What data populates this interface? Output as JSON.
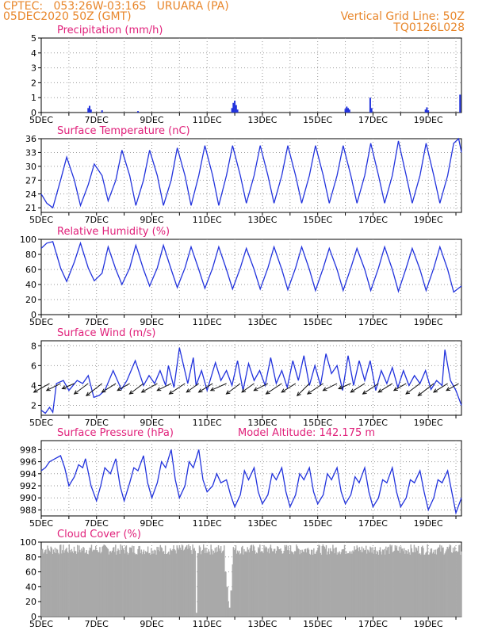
{
  "header": {
    "line1": "CPTEC:   053:26W-03:16S   URUARA (PA)",
    "line2": "05DEC2020 50Z (GMT)",
    "right1": "Vertical Grid Line: 50Z",
    "right2": "TQ0126L028"
  },
  "colors": {
    "header": "#e8862a",
    "title": "#e0207a",
    "line": "#2233dd",
    "cloud": "#a9a9a9",
    "arrow": "#111111"
  },
  "x_ticks": [
    "5DEC",
    "7DEC",
    "9DEC",
    "11DEC",
    "13DEC",
    "15DEC",
    "17DEC",
    "19DEC"
  ],
  "x_tick_positions_day": [
    5,
    7,
    9,
    11,
    13,
    15,
    17,
    19
  ],
  "chart_data": [
    {
      "type": "bar",
      "title": "Precipitation (mm/h)",
      "ylim": [
        0,
        5
      ],
      "yticks": [
        "0",
        "1",
        "2",
        "3",
        "4",
        "5"
      ],
      "xlim_day": [
        5,
        20.2
      ],
      "series": [
        {
          "x": [
            6.7,
            6.75,
            6.8,
            7.2,
            8.5,
            11.9,
            11.95,
            12.0,
            12.05,
            12.1,
            16.0,
            16.05,
            16.1,
            16.15,
            16.9,
            16.95,
            18.9,
            18.95,
            19.0,
            20.15
          ],
          "values": [
            0.3,
            0.45,
            0.2,
            0.15,
            0.1,
            0.3,
            0.65,
            0.8,
            0.5,
            0.2,
            0.25,
            0.4,
            0.3,
            0.2,
            1.0,
            0.3,
            0.2,
            0.35,
            0.15,
            1.2
          ]
        }
      ]
    },
    {
      "type": "line",
      "title": "Surface Temperature (nC)",
      "ylim": [
        20,
        36
      ],
      "yticks": [
        "21",
        "24",
        "27",
        "30",
        "33",
        "36"
      ],
      "xlim_day": [
        5,
        20.2
      ],
      "series": [
        {
          "x": [
            5.0,
            5.2,
            5.42,
            5.7,
            5.92,
            6.2,
            6.42,
            6.7,
            6.92,
            7.2,
            7.42,
            7.7,
            7.92,
            8.2,
            8.42,
            8.7,
            8.92,
            9.2,
            9.42,
            9.7,
            9.92,
            10.2,
            10.42,
            10.7,
            10.92,
            11.2,
            11.42,
            11.7,
            11.92,
            12.2,
            12.42,
            12.7,
            12.92,
            13.2,
            13.42,
            13.7,
            13.92,
            14.2,
            14.42,
            14.7,
            14.92,
            15.2,
            15.42,
            15.7,
            15.92,
            16.2,
            16.42,
            16.7,
            16.92,
            17.2,
            17.42,
            17.7,
            17.92,
            18.2,
            18.42,
            18.7,
            18.92,
            19.2,
            19.42,
            19.7,
            19.92,
            20.1,
            20.2
          ],
          "values": [
            24,
            22,
            21,
            27,
            32,
            27,
            21.5,
            26,
            30.5,
            28,
            22.5,
            27,
            33.5,
            28,
            21.5,
            27,
            33.5,
            28,
            21.5,
            27,
            34,
            28,
            21.5,
            28,
            34.5,
            28,
            21.5,
            28,
            34.5,
            28,
            22,
            28,
            34.5,
            28,
            22,
            28,
            34.5,
            28,
            22,
            28,
            34.5,
            28,
            22,
            28,
            34.5,
            28,
            22,
            28,
            35,
            28,
            22,
            28,
            35.5,
            28,
            22,
            28,
            35,
            28,
            22,
            28,
            35,
            36,
            33
          ]
        }
      ]
    },
    {
      "type": "line",
      "title": "Relative Humidity (%)",
      "ylim": [
        0,
        100
      ],
      "yticks": [
        "0",
        "20",
        "40",
        "60",
        "80",
        "100"
      ],
      "xlim_day": [
        5,
        20.2
      ],
      "series": [
        {
          "x": [
            5.0,
            5.2,
            5.42,
            5.7,
            5.92,
            6.2,
            6.42,
            6.7,
            6.92,
            7.2,
            7.42,
            7.7,
            7.92,
            8.2,
            8.42,
            8.7,
            8.92,
            9.2,
            9.42,
            9.7,
            9.92,
            10.2,
            10.42,
            10.7,
            10.92,
            11.2,
            11.42,
            11.7,
            11.92,
            12.2,
            12.42,
            12.7,
            12.92,
            13.2,
            13.42,
            13.7,
            13.92,
            14.2,
            14.42,
            14.7,
            14.92,
            15.2,
            15.42,
            15.7,
            15.92,
            16.2,
            16.42,
            16.7,
            16.92,
            17.2,
            17.42,
            17.7,
            17.92,
            18.2,
            18.42,
            18.7,
            18.92,
            19.2,
            19.42,
            19.7,
            19.92,
            20.2
          ],
          "values": [
            88,
            95,
            97,
            62,
            44,
            70,
            95,
            62,
            45,
            55,
            90,
            60,
            40,
            62,
            92,
            60,
            38,
            62,
            92,
            60,
            36,
            62,
            90,
            60,
            35,
            62,
            90,
            60,
            34,
            62,
            88,
            60,
            34,
            62,
            90,
            60,
            33,
            62,
            90,
            60,
            32,
            62,
            88,
            60,
            32,
            62,
            88,
            60,
            32,
            62,
            90,
            60,
            31,
            62,
            88,
            60,
            32,
            62,
            90,
            60,
            30,
            38
          ]
        }
      ]
    },
    {
      "type": "line",
      "title": "Surface Wind (m/s)",
      "ylim": [
        1,
        8.5
      ],
      "yticks": [
        "2",
        "4",
        "6",
        "8"
      ],
      "xlim_day": [
        5,
        20.2
      ],
      "series": [
        {
          "x": [
            5.0,
            5.15,
            5.3,
            5.42,
            5.55,
            5.8,
            6.0,
            6.3,
            6.5,
            6.7,
            6.9,
            7.1,
            7.3,
            7.6,
            7.9,
            8.1,
            8.4,
            8.7,
            8.9,
            9.1,
            9.3,
            9.5,
            9.6,
            9.8,
            10.0,
            10.3,
            10.5,
            10.6,
            10.8,
            11.0,
            11.3,
            11.5,
            11.7,
            11.9,
            12.1,
            12.3,
            12.5,
            12.7,
            12.9,
            13.1,
            13.3,
            13.5,
            13.7,
            13.9,
            14.1,
            14.3,
            14.5,
            14.7,
            14.9,
            15.1,
            15.3,
            15.5,
            15.7,
            15.9,
            16.1,
            16.3,
            16.5,
            16.7,
            16.9,
            17.1,
            17.3,
            17.5,
            17.7,
            17.9,
            18.1,
            18.3,
            18.5,
            18.7,
            18.9,
            19.1,
            19.3,
            19.5,
            19.6,
            19.8,
            20.0,
            20.2
          ],
          "values": [
            1.5,
            1.2,
            1.8,
            1.3,
            4.2,
            4.5,
            3.5,
            4.5,
            4.2,
            5.0,
            2.8,
            3.0,
            3.5,
            5.5,
            3.6,
            4.5,
            6.5,
            4.0,
            5.0,
            4.2,
            5.5,
            4.0,
            6.0,
            3.8,
            7.8,
            4.2,
            6.8,
            4.0,
            5.5,
            3.5,
            6.3,
            4.5,
            5.5,
            4.0,
            6.5,
            3.5,
            6.2,
            4.5,
            5.5,
            4.0,
            6.8,
            4.2,
            5.5,
            3.8,
            6.5,
            4.5,
            7.0,
            4.0,
            6.0,
            4.0,
            7.2,
            5.2,
            6.0,
            3.5,
            7.0,
            4.0,
            6.5,
            4.5,
            6.5,
            3.5,
            5.5,
            4.2,
            5.8,
            3.8,
            5.5,
            4.0,
            5.0,
            4.2,
            5.5,
            3.6,
            4.5,
            4.0,
            7.6,
            4.5,
            3.5,
            2.0
          ]
        }
      ],
      "vectors": {
        "x": [
          5.3,
          5.7,
          6.2,
          6.7,
          7.2,
          7.7,
          8.2,
          8.7,
          9.2,
          9.7,
          10.2,
          10.7,
          11.2,
          11.7,
          12.2,
          12.7,
          13.2,
          13.7,
          14.2,
          14.7,
          15.2,
          15.7,
          16.2,
          16.7,
          17.2,
          17.7,
          18.2,
          18.7,
          19.2,
          19.7,
          20.1
        ],
        "u": [
          -0.9,
          -0.8,
          -0.7,
          -0.8,
          -0.9,
          -0.8,
          -0.7,
          -0.8,
          -0.9,
          -0.8,
          -0.9,
          -0.7,
          -0.8,
          -0.9,
          -0.8,
          -0.7,
          -0.8,
          -0.9,
          -0.8,
          -0.7,
          -0.9,
          -0.8,
          -0.7,
          -0.8,
          -0.9,
          -0.8,
          -0.7,
          -0.8,
          -0.9,
          -0.8,
          -0.7
        ],
        "v": [
          -0.5,
          -0.4,
          -0.3,
          -0.6,
          -0.7,
          -0.5,
          -0.4,
          -0.6,
          -0.5,
          -0.4,
          -0.6,
          -0.5,
          -0.5,
          -0.4,
          -0.6,
          -0.5,
          -0.4,
          -0.6,
          -0.5,
          -0.7,
          -0.6,
          -0.4,
          -0.3,
          -0.5,
          -0.6,
          -0.5,
          -0.4,
          -0.6,
          -0.7,
          -0.5,
          -0.4
        ]
      }
    },
    {
      "type": "line",
      "title": "Surface Pressure (hPa)",
      "annotation": "Model Altitude: 142.175 m",
      "ylim": [
        987,
        999.5
      ],
      "yticks": [
        "988",
        "990",
        "992",
        "994",
        "996",
        "998"
      ],
      "xlim_day": [
        5,
        20.2
      ],
      "series": [
        {
          "x": [
            5.0,
            5.15,
            5.3,
            5.5,
            5.7,
            5.85,
            6.0,
            6.2,
            6.35,
            6.5,
            6.6,
            6.8,
            7.0,
            7.15,
            7.3,
            7.5,
            7.7,
            7.85,
            8.0,
            8.2,
            8.35,
            8.5,
            8.7,
            8.85,
            9.0,
            9.2,
            9.35,
            9.5,
            9.7,
            9.85,
            10.0,
            10.2,
            10.35,
            10.5,
            10.7,
            10.85,
            11.0,
            11.2,
            11.35,
            11.5,
            11.7,
            11.85,
            12.0,
            12.2,
            12.35,
            12.5,
            12.7,
            12.85,
            13.0,
            13.2,
            13.35,
            13.5,
            13.7,
            13.85,
            14.0,
            14.2,
            14.35,
            14.5,
            14.7,
            14.85,
            15.0,
            15.2,
            15.35,
            15.5,
            15.7,
            15.85,
            16.0,
            16.2,
            16.35,
            16.5,
            16.7,
            16.85,
            17.0,
            17.2,
            17.35,
            17.5,
            17.7,
            17.85,
            18.0,
            18.2,
            18.35,
            18.5,
            18.7,
            18.85,
            19.0,
            19.2,
            19.35,
            19.5,
            19.7,
            19.85,
            20.0,
            20.2
          ],
          "values": [
            994.5,
            995,
            996,
            996.5,
            997,
            995,
            992,
            993.5,
            995.5,
            995,
            996.5,
            992,
            989.5,
            992,
            995,
            994,
            996.5,
            992,
            989.5,
            992.5,
            995,
            994.5,
            997,
            992.5,
            990,
            992.5,
            996,
            995,
            998,
            993,
            990,
            992,
            996,
            995,
            998,
            993,
            991,
            992,
            994,
            992.5,
            993,
            990.5,
            988.5,
            990.5,
            994.5,
            993,
            995,
            991,
            989,
            990.5,
            994,
            993,
            995,
            991,
            988.5,
            990.5,
            994,
            993,
            995,
            991,
            989,
            990.5,
            994,
            993,
            995,
            991,
            989,
            990.5,
            993.5,
            992.5,
            995,
            991,
            988.5,
            990,
            993,
            992.5,
            995,
            991,
            988.5,
            990,
            993,
            992.5,
            994.5,
            991,
            988,
            990,
            993,
            992.5,
            994.5,
            991,
            987.5,
            990
          ]
        }
      ]
    },
    {
      "type": "bar",
      "title": "Cloud Cover (%)",
      "ylim": [
        0,
        100
      ],
      "yticks": [
        "0",
        "20",
        "40",
        "60",
        "80",
        "100"
      ],
      "xlim_day": [
        5,
        20.2
      ],
      "series": [
        {
          "x": [
            10.6,
            10.65,
            11.65,
            11.7,
            11.75,
            11.8,
            11.85,
            11.9
          ],
          "values": [
            5,
            85,
            60,
            40,
            20,
            12,
            35,
            70
          ]
        }
      ],
      "base_level": 90
    }
  ]
}
